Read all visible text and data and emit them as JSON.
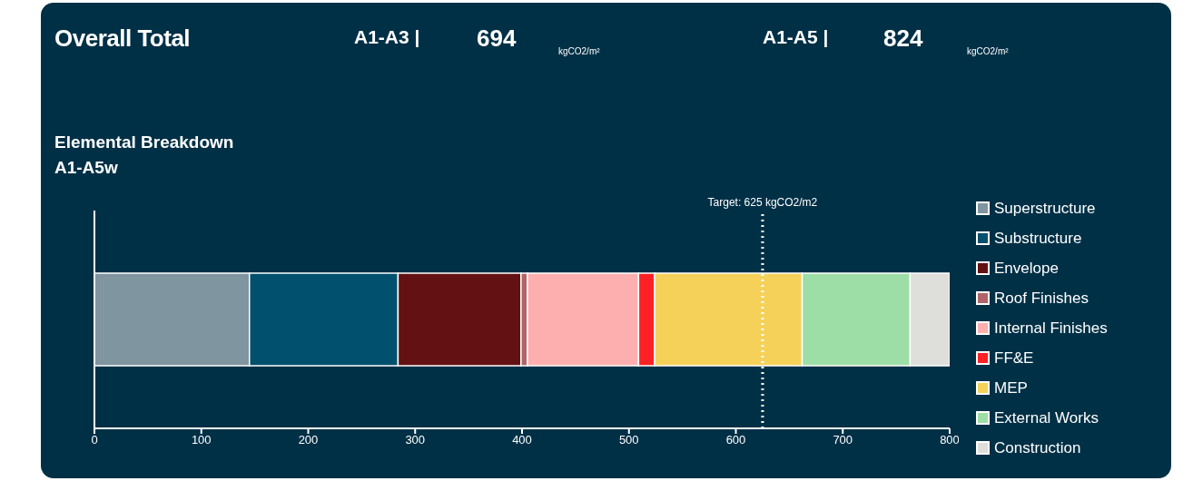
{
  "chart_data": {
    "type": "bar",
    "orientation": "horizontal",
    "stacked": true,
    "title": "Overall Total",
    "subtitle": "Elemental Breakdown\nA1-A5w",
    "annotations": [
      "A1-A3 |",
      "694",
      "kgCO2/m²",
      "A1-A5 |",
      "824",
      "kgCO2/m²"
    ],
    "categories": [
      null
    ],
    "series": [
      {
        "name": "Superstructure",
        "color": "#7f95a0",
        "values": [
          145
        ]
      },
      {
        "name": "Substructure",
        "color": "#01506e",
        "values": [
          139
        ]
      },
      {
        "name": "Envelope",
        "color": "#641114",
        "values": [
          115
        ]
      },
      {
        "name": "Roof Finishes",
        "color": "#b06468",
        "values": [
          6
        ]
      },
      {
        "name": "Internal Finishes",
        "color": "#fcafae",
        "values": [
          104
        ]
      },
      {
        "name": "FF&E",
        "color": "#fb2125",
        "values": [
          15
        ]
      },
      {
        "name": "MEP",
        "color": "#f5d15a",
        "values": [
          138
        ]
      },
      {
        "name": "External Works",
        "color": "#9ddea6",
        "values": [
          101
        ]
      },
      {
        "name": "Construction",
        "color": "#dededa",
        "values": [
          37
        ]
      }
    ],
    "xlim": [
      0,
      800
    ],
    "xticks": [
      0,
      100,
      200,
      300,
      400,
      500,
      600,
      700,
      800
    ],
    "ref_lines": [
      {
        "axis": "x",
        "value": 625,
        "label": "Target: 625 kgCO2/m2",
        "color": "#ffffff",
        "line_style": "dotted"
      }
    ],
    "legend": "right",
    "grid": false
  }
}
